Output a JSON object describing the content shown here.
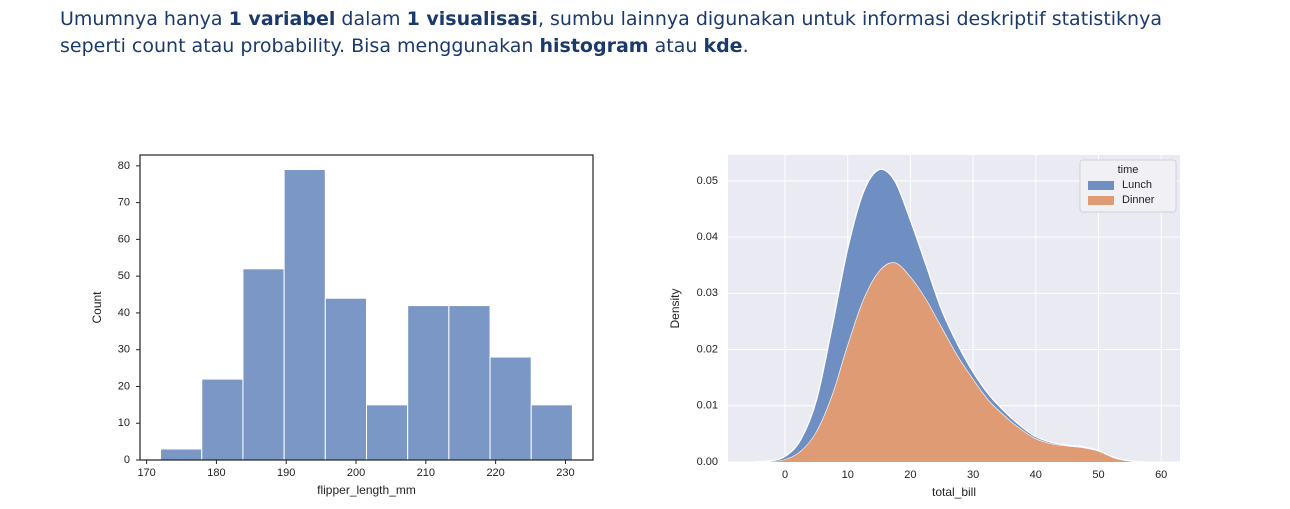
{
  "description": {
    "lines": [
      [
        {
          "text": "Umumnya hanya ",
          "bold": false
        },
        {
          "text": "1 variabel",
          "bold": true
        },
        {
          "text": " dalam ",
          "bold": false
        },
        {
          "text": "1 visualisasi",
          "bold": true
        },
        {
          "text": ", sumbu lainnya digunakan untuk informasi deskriptif statistiknya",
          "bold": false
        }
      ],
      [
        {
          "text": "seperti count atau probability. Bisa menggunakan ",
          "bold": false
        },
        {
          "text": "histogram",
          "bold": true
        },
        {
          "text": " atau ",
          "bold": false
        },
        {
          "text": "kde",
          "bold": true
        },
        {
          "text": ".",
          "bold": false
        }
      ]
    ]
  },
  "chart_data": [
    {
      "type": "histogram",
      "xlabel": "flipper_length_mm",
      "ylabel": "Count",
      "color": "#7b97c5",
      "bins": [
        172,
        177.9,
        183.8,
        189.7,
        195.6,
        201.5,
        207.4,
        213.3,
        219.2,
        225.1,
        231
      ],
      "values": [
        3,
        22,
        52,
        79,
        44,
        15,
        42,
        42,
        28,
        15
      ],
      "xlim": [
        169.05,
        233.95
      ],
      "xticks": [
        170,
        180,
        190,
        200,
        210,
        220,
        230
      ],
      "ylim": [
        0,
        82.95
      ],
      "yticks": [
        0,
        10,
        20,
        30,
        40,
        50,
        60,
        70,
        80
      ],
      "grid": false
    },
    {
      "type": "kde-stack",
      "xlabel": "total_bill",
      "ylabel": "Density",
      "legend_title": "time",
      "legend": "upper right",
      "grid": true,
      "x": [
        -5,
        -2.5,
        0,
        2.5,
        5,
        7.5,
        10,
        12.5,
        15,
        17.5,
        20,
        22.5,
        25,
        27.5,
        30,
        32.5,
        35,
        37.5,
        40,
        42.5,
        45,
        47.5,
        50,
        52.5,
        55,
        57.5
      ],
      "series": [
        {
          "name": "Lunch",
          "color": "#6f8fc2",
          "values": [
            0,
            0.0001,
            0.0005,
            0.002,
            0.0055,
            0.012,
            0.017,
            0.019,
            0.018,
            0.0145,
            0.01,
            0.006,
            0.003,
            0.002,
            0.0012,
            0.001,
            0.0007,
            0.0005,
            0.0003,
            0.0002,
            0.0001,
            0.0001,
            0,
            0,
            0,
            0
          ]
        },
        {
          "name": "Dinner",
          "color": "#df9c74",
          "values": [
            0,
            0.0001,
            0.0005,
            0.002,
            0.0055,
            0.012,
            0.021,
            0.029,
            0.034,
            0.0355,
            0.033,
            0.029,
            0.024,
            0.019,
            0.0148,
            0.011,
            0.0083,
            0.006,
            0.0042,
            0.0033,
            0.0029,
            0.0026,
            0.002,
            0.0008,
            0.0002,
            0
          ]
        }
      ],
      "xlim": [
        -9.1,
        63
      ],
      "xticks": [
        0,
        10,
        20,
        30,
        40,
        50,
        60
      ],
      "ylim": [
        0,
        0.0546
      ],
      "yticks": [
        {
          "value": 0,
          "label": "0.00"
        },
        {
          "value": 0.01,
          "label": "0.01"
        },
        {
          "value": 0.02,
          "label": "0.02"
        },
        {
          "value": 0.03,
          "label": "0.03"
        },
        {
          "value": 0.04,
          "label": "0.04"
        },
        {
          "value": 0.05,
          "label": "0.05"
        }
      ]
    }
  ]
}
